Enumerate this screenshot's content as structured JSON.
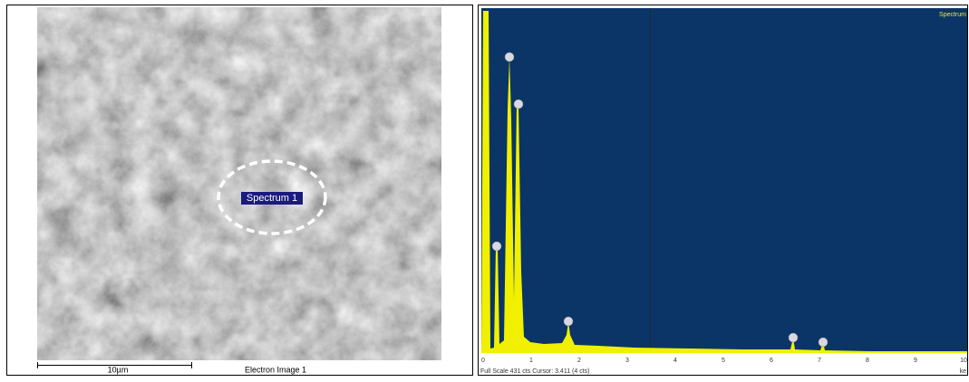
{
  "left_panel": {
    "spectrum_label": "Spectrum 1",
    "scale_bar": "10µm",
    "caption": "Electron Image 1"
  },
  "right_panel": {
    "legend": "Spectrum",
    "x_ticks": [
      0,
      1,
      2,
      3,
      4,
      5,
      6,
      7,
      8,
      9,
      10
    ],
    "status": "Full Scale 431 cts Cursor: 3.411  (4 cts)",
    "unit": "ke"
  }
}
